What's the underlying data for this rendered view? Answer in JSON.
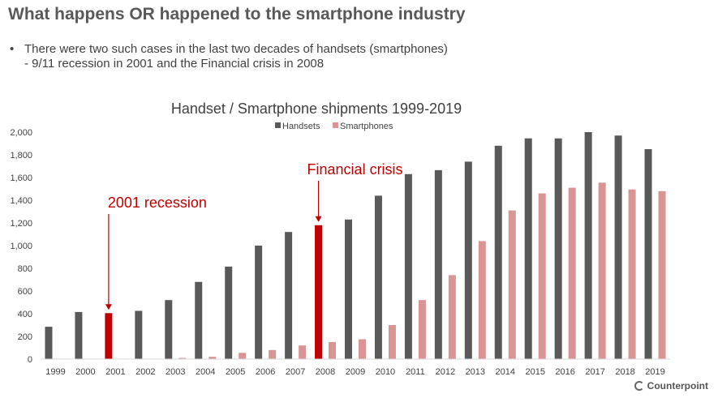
{
  "slide": {
    "title": "What happens OR happened to the smartphone industry",
    "bullet_line1": "There were two such cases in the last two decades of handsets (smartphones)",
    "bullet_line2": "- 9/11 recession in 2001 and the Financial crisis in 2008",
    "bullet_symbol": "•"
  },
  "brand": {
    "logo_text": "Counterpoint"
  },
  "colors": {
    "handsets": "#595959",
    "smartphones": "#d99594",
    "highlight": "#c00000",
    "annotation": "#c00000",
    "axis": "#d9d9d9",
    "text": "#404040"
  },
  "chart_data": {
    "type": "bar",
    "title": "Handset / Smartphone shipments 1999-2019",
    "categories": [
      "1999",
      "2000",
      "2001",
      "2002",
      "2003",
      "2004",
      "2005",
      "2006",
      "2007",
      "2008",
      "2009",
      "2010",
      "2011",
      "2012",
      "2013",
      "2014",
      "2015",
      "2016",
      "2017",
      "2018",
      "2019"
    ],
    "series": [
      {
        "name": "Handsets",
        "values": [
          285,
          415,
          405,
          425,
          520,
          680,
          815,
          1000,
          1120,
          1180,
          1230,
          1440,
          1630,
          1665,
          1740,
          1880,
          1945,
          1945,
          2000,
          1970,
          1850
        ]
      },
      {
        "name": "Smartphones",
        "values": [
          0,
          0,
          1,
          2,
          10,
          20,
          55,
          80,
          120,
          150,
          175,
          300,
          520,
          740,
          1040,
          1310,
          1460,
          1510,
          1555,
          1495,
          1480
        ]
      }
    ],
    "ylim": [
      0,
      2000
    ],
    "yticks": [
      0,
      200,
      400,
      600,
      800,
      1000,
      1200,
      1400,
      1600,
      1800,
      2000
    ],
    "ytick_labels": [
      "0",
      "200",
      "400",
      "600",
      "800",
      "1,000",
      "1,200",
      "1,400",
      "1,600",
      "1,800",
      "2,000"
    ],
    "highlight_categories": [
      "2001",
      "2008"
    ],
    "legend_position": "top-center",
    "annotations": [
      {
        "text": "2001 recession",
        "category": "2001"
      },
      {
        "text": "Financial crisis",
        "category": "2008"
      }
    ],
    "xlabel": "",
    "ylabel": "",
    "grid": false
  }
}
